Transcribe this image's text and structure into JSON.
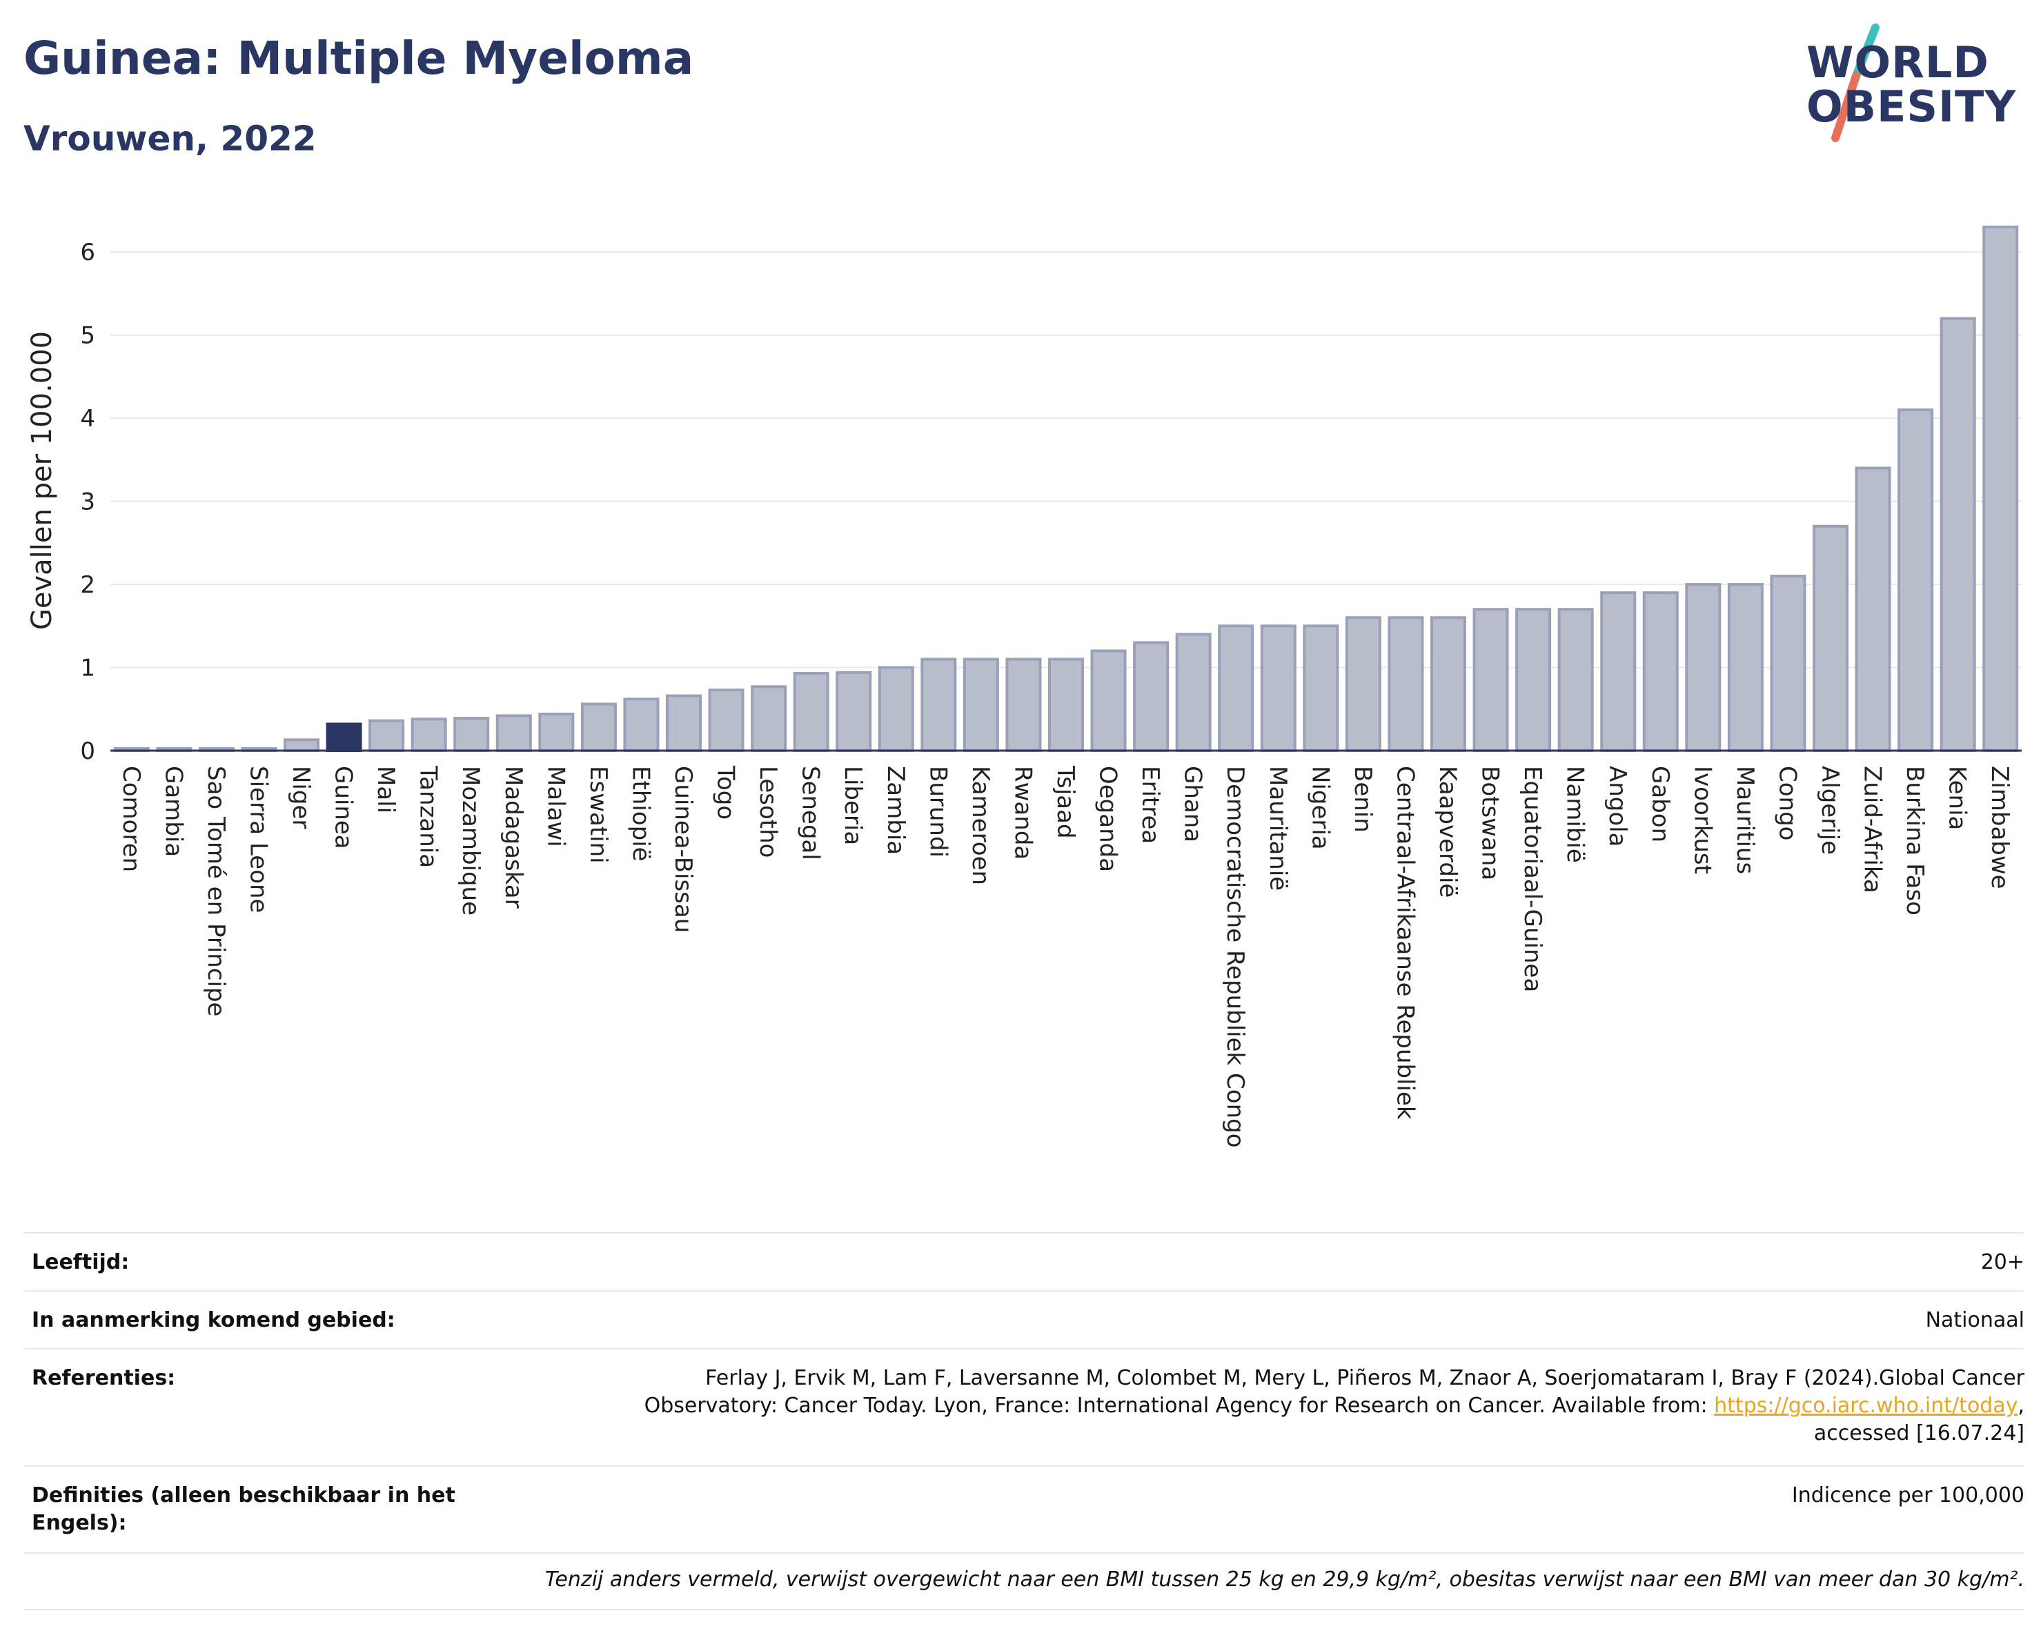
{
  "header": {
    "title": "Guinea: Multiple Myeloma",
    "subtitle": "Vrouwen, 2022",
    "logo_line1": "WORLD",
    "logo_line2": "OBESITY"
  },
  "colors": {
    "title": "#2a3664",
    "bar": "#b8bdcc",
    "bar_border": "#9aa0b8",
    "highlight": "#2a3664",
    "grid": "#e6e8f0",
    "link": "#e8a524",
    "logo_teal": "#3bbfbf",
    "logo_coral": "#e8705a"
  },
  "chart_data": {
    "type": "bar",
    "ylabel": "Gevallen per 100.000",
    "ylim": [
      0,
      6.5
    ],
    "yticks": [
      0,
      1,
      2,
      3,
      4,
      5,
      6
    ],
    "grid": true,
    "highlight": "Guinea",
    "categories": [
      "Comoren",
      "Gambia",
      "Sao Tomé en Principe",
      "Sierra Leone",
      "Niger",
      "Guinea",
      "Mali",
      "Tanzania",
      "Mozambique",
      "Madagaskar",
      "Malawi",
      "Eswatini",
      "Ethiopië",
      "Guinea-Bissau",
      "Togo",
      "Lesotho",
      "Senegal",
      "Liberia",
      "Zambia",
      "Burundi",
      "Kameroen",
      "Rwanda",
      "Tsjaad",
      "Oeganda",
      "Eritrea",
      "Ghana",
      "Democratische Republiek Congo",
      "Mauritanië",
      "Nigeria",
      "Benin",
      "Centraal-Afrikaanse Republiek",
      "Kaapverdië",
      "Botswana",
      "Equatoriaal-Guinea",
      "Namibië",
      "Angola",
      "Gabon",
      "Ivoorkust",
      "Mauritius",
      "Congo",
      "Algerije",
      "Zuid-Afrika",
      "Burkina Faso",
      "Kenia",
      "Zimbabwe"
    ],
    "values": [
      0.02,
      0.02,
      0.02,
      0.02,
      0.13,
      0.32,
      0.36,
      0.38,
      0.39,
      0.42,
      0.44,
      0.56,
      0.62,
      0.66,
      0.73,
      0.77,
      0.93,
      0.94,
      1.0,
      1.1,
      1.1,
      1.1,
      1.1,
      1.2,
      1.3,
      1.4,
      1.5,
      1.5,
      1.5,
      1.6,
      1.6,
      1.6,
      1.7,
      1.7,
      1.7,
      1.9,
      1.9,
      2.0,
      2.0,
      2.1,
      2.7,
      3.4,
      4.1,
      5.2,
      6.3
    ]
  },
  "info": {
    "age_label": "Leeftijd:",
    "age_value": "20+",
    "area_label": "In aanmerking komend gebied:",
    "area_value": "Nationaal",
    "ref_label": "Referenties:",
    "ref_line1": "Ferlay J, Ervik M, Lam F, Laversanne M, Colombet M, Mery L, Piñeros M, Znaor A, Soerjomataram I, Bray F (2024).Global Cancer",
    "ref_line2_pre": "Observatory: Cancer Today. Lyon, France: International Agency for Research on Cancer. Available from: ",
    "ref_link": "https://gco.iarc.who.int/today",
    "ref_line2_post": ",",
    "ref_line3": "accessed [16.07.24]",
    "def_label": "Definities (alleen beschikbaar in het Engels):",
    "def_value": "Indicence per 100,000",
    "footnote": "Tenzij anders vermeld, verwijst overgewicht naar een BMI tussen 25 kg en 29,9 kg/m², obesitas verwijst naar een BMI van meer dan 30 kg/m²."
  }
}
